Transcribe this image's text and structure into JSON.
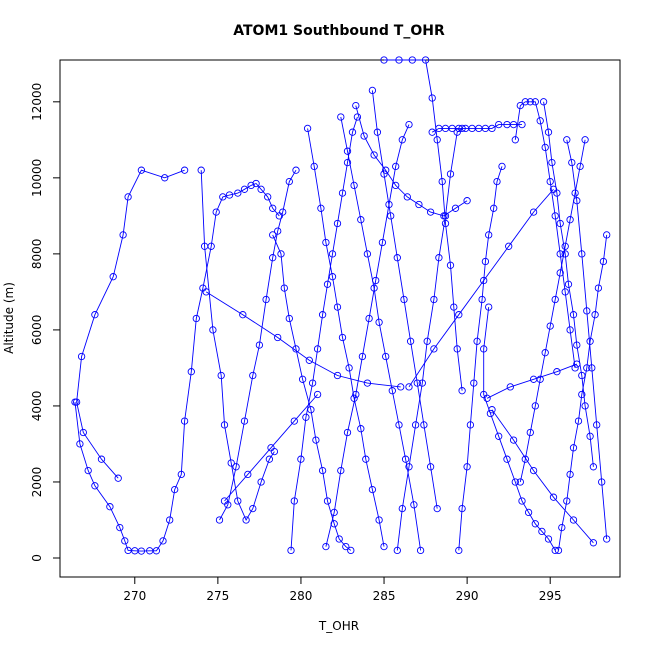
{
  "chart_data": {
    "type": "line",
    "title": "ATOM1 Southbound T_OHR",
    "xlabel": "T_OHR",
    "ylabel": "Altitude (m)",
    "xlim": [
      265.5,
      299.2
    ],
    "ylim": [
      -500,
      13100
    ],
    "x_ticks": [
      270,
      275,
      280,
      285,
      290,
      295
    ],
    "y_ticks": [
      0,
      2000,
      4000,
      6000,
      8000,
      10000,
      12000
    ],
    "grid": false,
    "line_color": "#0000ff",
    "marker": "open-circle",
    "series": [
      {
        "x": [
          266.4,
          266.7,
          267.2,
          267.6,
          268.5,
          269.1,
          269.4,
          269.6,
          270.0,
          270.4,
          270.9,
          271.3,
          271.7,
          272.1,
          272.4,
          272.8,
          273.0,
          273.4,
          273.7,
          274.1,
          274.6,
          274.9,
          275.3,
          275.7,
          276.2,
          276.6,
          277.0,
          277.3,
          277.6,
          278.0,
          278.3,
          278.7
        ],
        "y": [
          4100,
          3000,
          2300,
          1900,
          1350,
          800,
          450,
          200,
          190,
          180,
          190,
          190,
          450,
          1000,
          1800,
          2200,
          3600,
          4900,
          6300,
          7100,
          8200,
          9100,
          9500,
          9550,
          9600,
          9700,
          9800,
          9850,
          9700,
          9500,
          9200,
          9000
        ]
      },
      {
        "x": [
          273.0,
          271.8,
          270.4,
          269.6,
          269.3,
          268.7,
          267.6,
          266.8,
          266.5,
          266.9,
          268.0,
          269.0
        ],
        "y": [
          10200,
          10000,
          10200,
          9500,
          8500,
          7400,
          6400,
          5300,
          4100,
          3300,
          2600,
          2100
        ]
      },
      {
        "x": [
          274.0,
          274.2,
          274.7,
          275.2,
          275.4,
          275.8,
          276.2,
          276.7,
          277.1,
          277.6,
          278.1,
          278.4
        ],
        "y": [
          10200,
          8200,
          6000,
          4800,
          3500,
          2500,
          1500,
          1000,
          1300,
          2000,
          2600,
          2800
        ]
      },
      {
        "x": [
          275.1,
          275.6,
          276.1,
          276.6,
          277.1,
          277.5,
          277.9,
          278.3,
          278.6,
          278.9,
          279.3,
          279.7
        ],
        "y": [
          1000,
          1400,
          2400,
          3600,
          4800,
          5600,
          6800,
          7900,
          8600,
          9100,
          9900,
          10200
        ]
      },
      {
        "x": [
          274.3,
          276.5,
          278.6,
          280.5,
          282.2,
          284.0,
          286.0
        ],
        "y": [
          7000,
          6400,
          5800,
          5200,
          4800,
          4600,
          4500
        ]
      },
      {
        "x": [
          278.3,
          278.8,
          279.0,
          279.3,
          279.7,
          280.1,
          280.6,
          280.9,
          281.3,
          281.6,
          282.0,
          282.3,
          282.7,
          283.0
        ],
        "y": [
          8500,
          8000,
          7100,
          6300,
          5500,
          4700,
          3900,
          3100,
          2300,
          1500,
          900,
          500,
          300,
          200
        ]
      },
      {
        "x": [
          279.4,
          279.6,
          280.0,
          280.3,
          280.7,
          281.0,
          281.3,
          281.6,
          281.9,
          282.2,
          282.5,
          282.8,
          283.1,
          283.4
        ],
        "y": [
          200,
          1500,
          2600,
          3700,
          4600,
          5500,
          6400,
          7200,
          8000,
          8800,
          9600,
          10400,
          11200,
          11600
        ]
      },
      {
        "x": [
          280.4,
          280.8,
          281.2,
          281.5,
          281.9,
          282.2,
          282.5,
          282.9,
          283.2,
          283.6,
          283.9,
          284.3,
          284.7,
          285.0
        ],
        "y": [
          11300,
          10300,
          9200,
          8300,
          7400,
          6600,
          5800,
          5000,
          4200,
          3400,
          2600,
          1800,
          1000,
          300
        ]
      },
      {
        "x": [
          281.5,
          282.0,
          282.4,
          282.8,
          283.3,
          283.7,
          284.1,
          284.5,
          284.9,
          285.3,
          285.7,
          286.1,
          286.5
        ],
        "y": [
          300,
          1200,
          2300,
          3300,
          4300,
          5300,
          6300,
          7300,
          8300,
          9300,
          10300,
          11000,
          11400
        ]
      },
      {
        "x": [
          282.4,
          282.8,
          283.2,
          283.6,
          284.0,
          284.4,
          284.7,
          285.1,
          285.5,
          285.9,
          286.3,
          286.8,
          287.2
        ],
        "y": [
          11600,
          10700,
          9800,
          8900,
          8000,
          7100,
          6200,
          5300,
          4400,
          3500,
          2600,
          1400,
          200
        ]
      },
      {
        "x": [
          283.3,
          283.8,
          284.4,
          285.1,
          285.7,
          286.4,
          287.1,
          287.8,
          288.6,
          289.3,
          290.0
        ],
        "y": [
          11900,
          11100,
          10600,
          10200,
          9800,
          9500,
          9300,
          9100,
          9000,
          9200,
          9400
        ]
      },
      {
        "x": [
          284.3,
          284.6,
          285.0,
          285.4,
          285.8,
          286.2,
          286.6,
          287.0,
          287.4,
          287.8,
          288.2
        ],
        "y": [
          12300,
          11200,
          10100,
          9000,
          7900,
          6800,
          5700,
          4600,
          3500,
          2400,
          1300
        ]
      },
      {
        "x": [
          285.0,
          285.9,
          286.7,
          287.5,
          287.9,
          288.2,
          288.5,
          288.7,
          289.0,
          289.2,
          289.4,
          289.7
        ],
        "y": [
          13100,
          13100,
          13100,
          13100,
          12100,
          11000,
          9900,
          8800,
          7700,
          6600,
          5500,
          4400
        ]
      },
      {
        "x": [
          285.8,
          286.1,
          286.5,
          286.9,
          287.3,
          287.6,
          288.0,
          288.3,
          288.7,
          289.0,
          289.4,
          289.7
        ],
        "y": [
          200,
          1300,
          2400,
          3500,
          4600,
          5700,
          6800,
          7900,
          9000,
          10100,
          11200,
          11300
        ]
      },
      {
        "x": [
          287.9,
          288.3,
          288.7,
          289.1,
          289.5,
          289.9,
          290.3,
          290.7,
          291.1,
          291.5,
          291.9,
          292.4,
          292.8,
          293.3
        ],
        "y": [
          11200,
          11300,
          11300,
          11300,
          11300,
          11300,
          11300,
          11300,
          11300,
          11300,
          11400,
          11400,
          11400,
          11400
        ]
      },
      {
        "x": [
          289.5,
          289.7,
          290.0,
          290.2,
          290.4,
          290.6,
          290.9,
          291.1,
          291.3,
          291.6,
          291.8,
          292.1
        ],
        "y": [
          200,
          1300,
          2400,
          3500,
          4600,
          5700,
          6800,
          7800,
          8500,
          9200,
          9900,
          10300
        ]
      },
      {
        "x": [
          291.3,
          291.0,
          291.0,
          291.4,
          291.9,
          292.4,
          292.9,
          293.3,
          293.7,
          294.1,
          294.5,
          294.9,
          295.3
        ],
        "y": [
          6600,
          5500,
          4300,
          3800,
          3200,
          2600,
          2000,
          1500,
          1200,
          900,
          700,
          500,
          200
        ]
      },
      {
        "x": [
          292.9,
          293.2,
          293.5,
          293.8,
          294.1,
          294.4,
          294.7,
          295.0,
          295.3,
          295.6,
          295.9,
          296.2,
          296.5
        ],
        "y": [
          11000,
          11900,
          12000,
          12000,
          12000,
          11500,
          10800,
          9900,
          9000,
          8000,
          7000,
          6000,
          5000
        ]
      },
      {
        "x": [
          293.2,
          293.5,
          293.8,
          294.1,
          294.4,
          294.7,
          295.0,
          295.3,
          295.6,
          295.9,
          296.2,
          296.5,
          296.8,
          297.1
        ],
        "y": [
          2000,
          2600,
          3300,
          4000,
          4700,
          5400,
          6100,
          6800,
          7500,
          8200,
          8900,
          9600,
          10300,
          11000
        ]
      },
      {
        "x": [
          294.6,
          294.9,
          295.1,
          295.4,
          295.6,
          295.9,
          296.1,
          296.4,
          296.6,
          296.9,
          297.1,
          297.4,
          297.6
        ],
        "y": [
          12000,
          11200,
          10400,
          9600,
          8800,
          8000,
          7200,
          6400,
          5600,
          4800,
          4000,
          3200,
          2400
        ]
      },
      {
        "x": [
          295.5,
          295.7,
          296.0,
          296.2,
          296.4,
          296.7,
          296.9,
          297.2,
          297.4,
          297.7,
          297.9,
          298.2,
          298.4
        ],
        "y": [
          200,
          800,
          1500,
          2200,
          2900,
          3600,
          4300,
          5000,
          5700,
          6400,
          7100,
          7800,
          8500
        ]
      },
      {
        "x": [
          296.0,
          296.3,
          296.6,
          296.9,
          297.2,
          297.5,
          297.8,
          298.1,
          298.4
        ],
        "y": [
          11000,
          10400,
          9400,
          8000,
          6500,
          5000,
          3500,
          2000,
          500
        ]
      },
      {
        "x": [
          291.2,
          292.6,
          294.0,
          295.4,
          296.6
        ],
        "y": [
          4200,
          4500,
          4700,
          4900,
          5100
        ]
      },
      {
        "x": [
          286.5,
          288.0,
          289.5,
          291.0,
          292.5,
          294.0,
          295.2
        ],
        "y": [
          4500,
          5500,
          6400,
          7300,
          8200,
          9100,
          9700
        ]
      },
      {
        "x": [
          291.5,
          292.8,
          294.0,
          295.2,
          296.4,
          297.6
        ],
        "y": [
          3900,
          3100,
          2300,
          1600,
          1000,
          400
        ]
      },
      {
        "x": [
          275.4,
          276.8,
          278.2,
          279.6,
          281.0
        ],
        "y": [
          1500,
          2200,
          2900,
          3600,
          4300
        ]
      }
    ]
  }
}
